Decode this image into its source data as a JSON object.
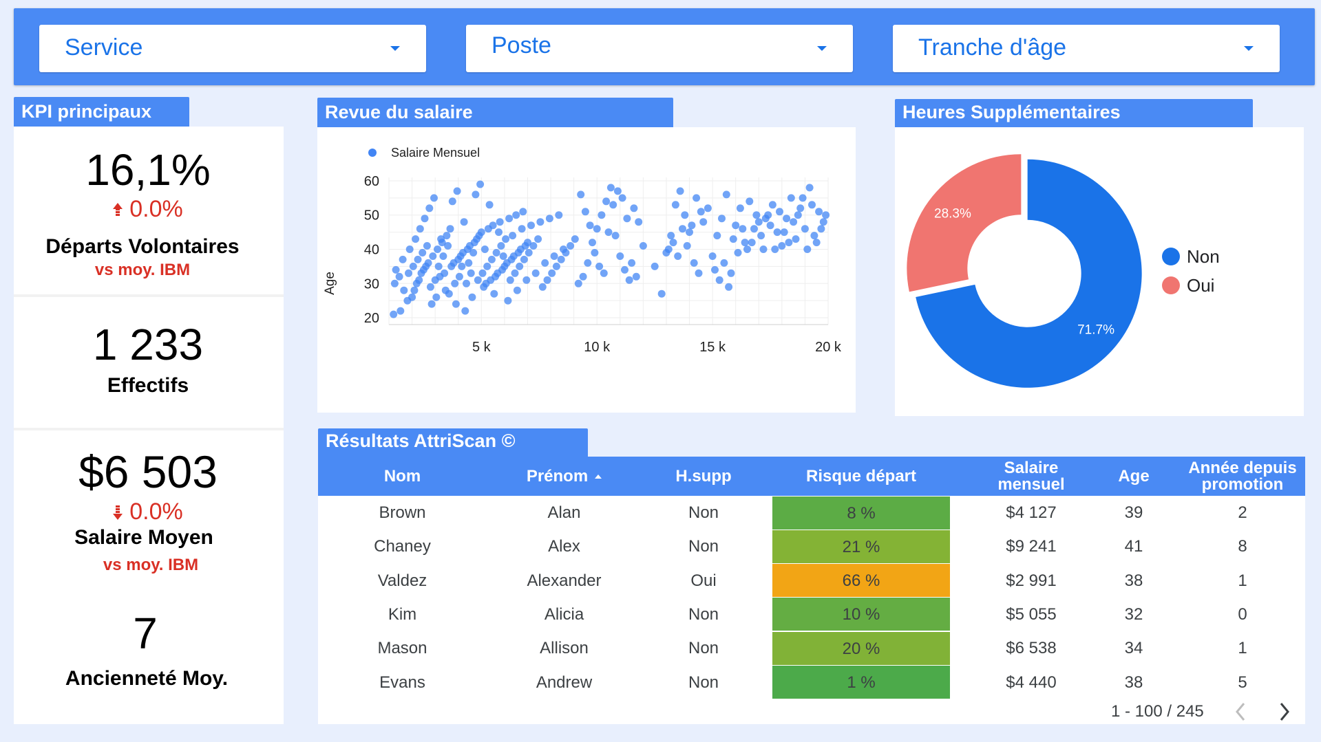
{
  "filters": {
    "service": "Service",
    "poste": "Poste",
    "tranche_age": "Tranche d'âge"
  },
  "kpi": {
    "tab_title": "KPI principaux",
    "departs": {
      "value": "16,1%",
      "delta": "0.0%",
      "label": "Départs Volontaires",
      "sub": "vs moy. IBM"
    },
    "effectifs": {
      "value": "1 233",
      "label": "Effectifs"
    },
    "salaire": {
      "value": "$6 503",
      "delta": "0.0%",
      "label": "Salaire Moyen",
      "sub": "vs moy. IBM"
    },
    "anciennete": {
      "value": "7",
      "label": "Ancienneté Moy."
    }
  },
  "salary_review": {
    "tab_title": "Revue du salaire"
  },
  "overtime": {
    "tab_title": "Heures Supplémentaires"
  },
  "chart_data": [
    {
      "type": "scatter",
      "title": "Revue du salaire",
      "legend": [
        "Salaire Mensuel"
      ],
      "xlabel": "",
      "ylabel": "Age",
      "xlim": [
        1000,
        20000
      ],
      "ylim": [
        18,
        61
      ],
      "xticks": [
        5000,
        10000,
        15000,
        20000
      ],
      "xtick_labels": [
        "5 k",
        "10 k",
        "15 k",
        "20 k"
      ],
      "yticks": [
        20,
        30,
        40,
        50,
        60
      ],
      "color": "#4285f4",
      "grid": true,
      "points": [
        [
          1200,
          21
        ],
        [
          1500,
          22
        ],
        [
          1800,
          25
        ],
        [
          2000,
          26
        ],
        [
          2100,
          28
        ],
        [
          2200,
          30
        ],
        [
          2300,
          31
        ],
        [
          2400,
          33
        ],
        [
          2500,
          34
        ],
        [
          2600,
          35
        ],
        [
          2700,
          36
        ],
        [
          2800,
          29
        ],
        [
          2900,
          38
        ],
        [
          3000,
          31
        ],
        [
          3100,
          40
        ],
        [
          3200,
          32
        ],
        [
          3300,
          42
        ],
        [
          3400,
          33
        ],
        [
          3500,
          44
        ],
        [
          3600,
          27
        ],
        [
          3700,
          35
        ],
        [
          3800,
          36
        ],
        [
          3900,
          24
        ],
        [
          4000,
          37
        ],
        [
          4100,
          38
        ],
        [
          4200,
          39
        ],
        [
          4300,
          22
        ],
        [
          4400,
          40
        ],
        [
          4500,
          41
        ],
        [
          4600,
          26
        ],
        [
          4700,
          42
        ],
        [
          4800,
          43
        ],
        [
          4900,
          44
        ],
        [
          5000,
          45
        ],
        [
          5100,
          29
        ],
        [
          5200,
          30
        ],
        [
          5300,
          46
        ],
        [
          5400,
          31
        ],
        [
          5500,
          47
        ],
        [
          5600,
          32
        ],
        [
          5700,
          33
        ],
        [
          5800,
          48
        ],
        [
          5900,
          34
        ],
        [
          6000,
          35
        ],
        [
          6100,
          36
        ],
        [
          6200,
          49
        ],
        [
          6300,
          37
        ],
        [
          6400,
          38
        ],
        [
          6500,
          50
        ],
        [
          6600,
          39
        ],
        [
          6700,
          40
        ],
        [
          6800,
          51
        ],
        [
          6900,
          41
        ],
        [
          7000,
          42
        ],
        [
          1300,
          34
        ],
        [
          1600,
          37
        ],
        [
          1900,
          40
        ],
        [
          2150,
          43
        ],
        [
          2350,
          46
        ],
        [
          2550,
          49
        ],
        [
          2750,
          52
        ],
        [
          2950,
          55
        ],
        [
          3150,
          35
        ],
        [
          3350,
          38
        ],
        [
          3550,
          41
        ],
        [
          3750,
          54
        ],
        [
          3950,
          57
        ],
        [
          4150,
          35
        ],
        [
          4350,
          30
        ],
        [
          4550,
          33
        ],
        [
          4750,
          56
        ],
        [
          4950,
          59
        ],
        [
          5150,
          40
        ],
        [
          5350,
          53
        ],
        [
          5550,
          27
        ],
        [
          5750,
          45
        ],
        [
          5950,
          38
        ],
        [
          6150,
          25
        ],
        [
          6350,
          44
        ],
        [
          6550,
          28
        ],
        [
          6750,
          46
        ],
        [
          6950,
          31
        ],
        [
          7150,
          47
        ],
        [
          7350,
          33
        ],
        [
          7550,
          48
        ],
        [
          7750,
          36
        ],
        [
          7950,
          49
        ],
        [
          8150,
          38
        ],
        [
          8350,
          50
        ],
        [
          8550,
          40
        ],
        [
          1250,
          30
        ],
        [
          1450,
          32
        ],
        [
          1650,
          28
        ],
        [
          1850,
          33
        ],
        [
          2050,
          35
        ],
        [
          2250,
          37
        ],
        [
          2450,
          39
        ],
        [
          2650,
          41
        ],
        [
          2850,
          24
        ],
        [
          3050,
          26
        ],
        [
          3250,
          43
        ],
        [
          3450,
          28
        ],
        [
          3650,
          46
        ],
        [
          3850,
          30
        ],
        [
          4050,
          32
        ],
        [
          4250,
          48
        ],
        [
          4450,
          36
        ],
        [
          4650,
          39
        ],
        [
          4850,
          31
        ],
        [
          5050,
          33
        ],
        [
          5250,
          35
        ],
        [
          5450,
          37
        ],
        [
          5650,
          39
        ],
        [
          5850,
          41
        ],
        [
          6050,
          43
        ],
        [
          6250,
          31
        ],
        [
          6450,
          33
        ],
        [
          6650,
          35
        ],
        [
          6850,
          37
        ],
        [
          7050,
          39
        ],
        [
          7250,
          41
        ],
        [
          7450,
          43
        ],
        [
          7650,
          29
        ],
        [
          7850,
          31
        ],
        [
          8050,
          33
        ],
        [
          8250,
          35
        ],
        [
          8450,
          37
        ],
        [
          8650,
          39
        ],
        [
          8850,
          41
        ],
        [
          9050,
          43
        ],
        [
          9200,
          30
        ],
        [
          9400,
          32
        ],
        [
          9600,
          36
        ],
        [
          9800,
          42
        ],
        [
          10000,
          46
        ],
        [
          10200,
          50
        ],
        [
          10400,
          54
        ],
        [
          10600,
          58
        ],
        [
          10800,
          44
        ],
        [
          11000,
          38
        ],
        [
          11200,
          34
        ],
        [
          11400,
          31
        ],
        [
          11600,
          52
        ],
        [
          11800,
          48
        ],
        [
          9300,
          56
        ],
        [
          9500,
          51
        ],
        [
          9700,
          47
        ],
        [
          9900,
          39
        ],
        [
          10100,
          35
        ],
        [
          10300,
          33
        ],
        [
          10500,
          45
        ],
        [
          10700,
          53
        ],
        [
          10900,
          57
        ],
        [
          11100,
          55
        ],
        [
          11300,
          49
        ],
        [
          11500,
          36
        ],
        [
          11700,
          32
        ],
        [
          12000,
          41
        ],
        [
          12500,
          35
        ],
        [
          12800,
          27
        ],
        [
          13000,
          39
        ],
        [
          13200,
          44
        ],
        [
          13400,
          53
        ],
        [
          13600,
          57
        ],
        [
          13800,
          50
        ],
        [
          14000,
          45
        ],
        [
          14200,
          36
        ],
        [
          14400,
          33
        ],
        [
          14600,
          48
        ],
        [
          14800,
          52
        ],
        [
          13100,
          40
        ],
        [
          13300,
          42
        ],
        [
          13500,
          38
        ],
        [
          13700,
          46
        ],
        [
          13900,
          41
        ],
        [
          14100,
          47
        ],
        [
          14300,
          55
        ],
        [
          14500,
          51
        ],
        [
          15000,
          38
        ],
        [
          15200,
          44
        ],
        [
          15400,
          49
        ],
        [
          15600,
          56
        ],
        [
          15800,
          33
        ],
        [
          16000,
          47
        ],
        [
          16200,
          52
        ],
        [
          16400,
          42
        ],
        [
          16600,
          54
        ],
        [
          16800,
          46
        ],
        [
          17000,
          48
        ],
        [
          17200,
          40
        ],
        [
          17400,
          50
        ],
        [
          17600,
          53
        ],
        [
          17800,
          45
        ],
        [
          18000,
          41
        ],
        [
          18200,
          49
        ],
        [
          18400,
          55
        ],
        [
          18600,
          43
        ],
        [
          18800,
          52
        ],
        [
          19000,
          46
        ],
        [
          19200,
          58
        ],
        [
          19400,
          44
        ],
        [
          19600,
          51
        ],
        [
          19800,
          48
        ],
        [
          15100,
          34
        ],
        [
          15300,
          31
        ],
        [
          15500,
          36
        ],
        [
          15700,
          29
        ],
        [
          15900,
          43
        ],
        [
          16100,
          39
        ],
        [
          16300,
          46
        ],
        [
          16500,
          40
        ],
        [
          16700,
          42
        ],
        [
          16900,
          50
        ],
        [
          17100,
          44
        ],
        [
          17300,
          49
        ],
        [
          17500,
          47
        ],
        [
          17700,
          40
        ],
        [
          17900,
          51
        ],
        [
          18100,
          45
        ],
        [
          18300,
          42
        ],
        [
          18500,
          48
        ],
        [
          18700,
          50
        ],
        [
          18900,
          55
        ],
        [
          19100,
          40
        ],
        [
          19300,
          53
        ],
        [
          19500,
          42
        ],
        [
          19700,
          46
        ],
        [
          19900,
          50
        ]
      ]
    },
    {
      "type": "pie",
      "title": "Heures Supplémentaires",
      "donut": true,
      "categories": [
        "Non",
        "Oui"
      ],
      "values": [
        71.7,
        28.3
      ],
      "labels": [
        "71.7%",
        "28.3%"
      ],
      "colors": [
        "#1a73e8",
        "#f07570"
      ],
      "legend": "right"
    }
  ],
  "attriscan": {
    "tab_title": "Résultats AttriScan ©",
    "columns": [
      "Nom",
      "Prénom",
      "H.supp",
      "Risque départ",
      "Salaire mensuel",
      "Age",
      "Année depuis promotion"
    ],
    "rows": [
      {
        "nom": "Brown",
        "prenom": "Alan",
        "hsupp": "Non",
        "risque": "8 %",
        "risque_color": "#5cac45",
        "salaire": "$4 127",
        "age": "39",
        "promo": "2"
      },
      {
        "nom": "Chaney",
        "prenom": "Alex",
        "hsupp": "Non",
        "risque": "21 %",
        "risque_color": "#84b335",
        "salaire": "$9 241",
        "age": "41",
        "promo": "8"
      },
      {
        "nom": "Valdez",
        "prenom": "Alexander",
        "hsupp": "Oui",
        "risque": "66 %",
        "risque_color": "#f2a515",
        "salaire": "$2 991",
        "age": "38",
        "promo": "1"
      },
      {
        "nom": "Kim",
        "prenom": "Alicia",
        "hsupp": "Non",
        "risque": "10 %",
        "risque_color": "#64ad43",
        "salaire": "$5 055",
        "age": "32",
        "promo": "0"
      },
      {
        "nom": "Mason",
        "prenom": "Allison",
        "hsupp": "Non",
        "risque": "20 %",
        "risque_color": "#81b237",
        "salaire": "$6 538",
        "age": "34",
        "promo": "1"
      },
      {
        "nom": "Evans",
        "prenom": "Andrew",
        "hsupp": "Non",
        "risque": "1 %",
        "risque_color": "#4caa4a",
        "salaire": "$4 440",
        "age": "38",
        "promo": "5"
      }
    ],
    "pagination": "1 - 100 / 245"
  }
}
